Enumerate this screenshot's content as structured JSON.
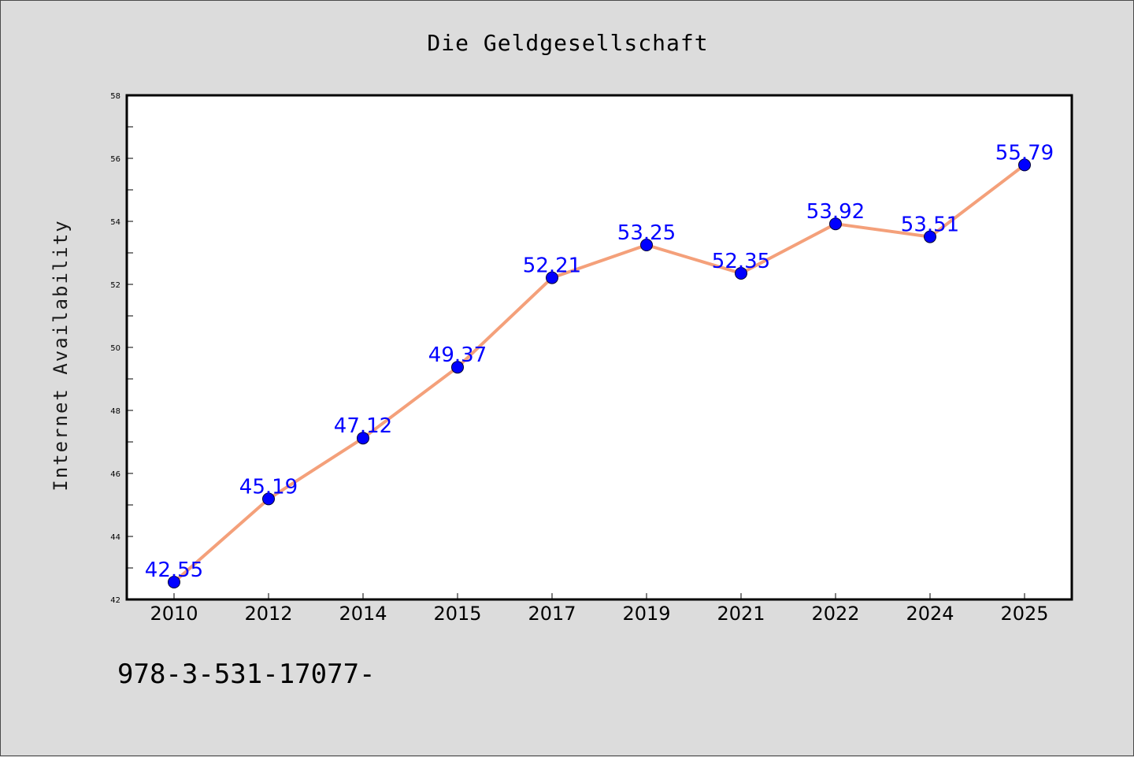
{
  "page": {
    "background": "#dcdcdc",
    "footer_text": "978-3-531-17077-"
  },
  "chart_data": {
    "type": "line",
    "title": "Die Geldgesellschaft",
    "xlabel": "",
    "ylabel": "Internet Availability",
    "categories": [
      "2010",
      "2012",
      "2014",
      "2015",
      "2017",
      "2019",
      "2021",
      "2022",
      "2024",
      "2025"
    ],
    "series": [
      {
        "values": [
          42.55,
          45.19,
          47.12,
          49.37,
          52.21,
          53.25,
          52.35,
          53.92,
          53.51,
          55.79
        ],
        "labels": [
          "42.55",
          "45.19",
          "47.12",
          "49.37",
          "52.21",
          "53.25",
          "52.35",
          "53.92",
          "53.51",
          "55.79"
        ],
        "line_color": "#f4a07a",
        "marker_color": "#0000ff",
        "label_color": "#0000ff"
      }
    ],
    "ylim": [
      42,
      58
    ],
    "yticks": [
      "42",
      "44",
      "46",
      "48",
      "50",
      "52",
      "54",
      "56",
      "58"
    ],
    "grid": false,
    "legend": "none",
    "plot_background": "#ffffff"
  }
}
